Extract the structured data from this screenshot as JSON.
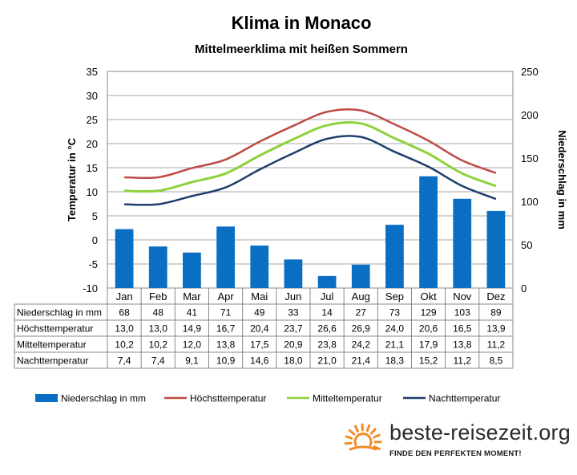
{
  "chart_data": {
    "type": "bar+line",
    "title": "Klima in Monaco",
    "subtitle": "Mittelmeerklima mit heißen Sommern",
    "categories": [
      "Jan",
      "Feb",
      "Mar",
      "Apr",
      "Mai",
      "Jun",
      "Jul",
      "Aug",
      "Sep",
      "Okt",
      "Nov",
      "Dez"
    ],
    "y_left": {
      "label": "Temperatur in °C",
      "min": -10,
      "max": 35,
      "step": 5,
      "ticks": [
        "35",
        "30",
        "25",
        "20",
        "15",
        "10",
        "5",
        "0",
        "-5",
        "-10"
      ]
    },
    "y_right": {
      "label": "Niederschlag in mm",
      "min": 0,
      "max": 250,
      "step": 50,
      "ticks": [
        "250",
        "200",
        "150",
        "100",
        "50",
        "0"
      ]
    },
    "grid": true,
    "series": [
      {
        "name": "Niederschlag in mm",
        "kind": "bar",
        "axis": "right",
        "color": "#0a6fc2",
        "values": [
          68,
          48,
          41,
          71,
          49,
          33,
          14,
          27,
          73,
          129,
          103,
          89
        ],
        "labels": [
          "68",
          "48",
          "41",
          "71",
          "49",
          "33",
          "14",
          "27",
          "73",
          "129",
          "103",
          "89"
        ]
      },
      {
        "name": "Höchsttemperatur",
        "kind": "line",
        "axis": "left",
        "color": "#bf4b45",
        "values": [
          13.0,
          13.0,
          14.9,
          16.7,
          20.4,
          23.7,
          26.6,
          26.9,
          24.0,
          20.6,
          16.5,
          13.9
        ],
        "labels": [
          "13,0",
          "13,0",
          "14,9",
          "16,7",
          "20,4",
          "23,7",
          "26,6",
          "26,9",
          "24,0",
          "20,6",
          "16,5",
          "13,9"
        ]
      },
      {
        "name": "Mitteltemperatur",
        "kind": "line",
        "axis": "left",
        "color": "#8dd13c",
        "values": [
          10.2,
          10.2,
          12.0,
          13.8,
          17.5,
          20.9,
          23.8,
          24.2,
          21.1,
          17.9,
          13.8,
          11.2
        ],
        "labels": [
          "10,2",
          "10,2",
          "12,0",
          "13,8",
          "17,5",
          "20,9",
          "23,8",
          "24,2",
          "21,1",
          "17,9",
          "13,8",
          "11,2"
        ]
      },
      {
        "name": "Nachttemperatur",
        "kind": "line",
        "axis": "left",
        "color": "#1f3d6e",
        "values": [
          7.4,
          7.4,
          9.1,
          10.9,
          14.6,
          18.0,
          21.0,
          21.4,
          18.3,
          15.2,
          11.2,
          8.5
        ],
        "labels": [
          "7,4",
          "7,4",
          "9,1",
          "10,9",
          "14,6",
          "18,0",
          "21,0",
          "21,4",
          "18,3",
          "15,2",
          "11,2",
          "8,5"
        ]
      }
    ],
    "table_row_headers": [
      "Niederschlag in mm",
      "Höchsttemperatur",
      "Mitteltemperatur",
      "Nachttemperatur"
    ],
    "legend": [
      "Niederschlag in mm",
      "Höchsttemperatur",
      "Mitteltemperatur",
      "Nachttemperatur"
    ],
    "legend_position": "bottom"
  },
  "branding": {
    "site": "beste-reisezeit.org",
    "tagline": "FINDE DEN PERFEKTEN MOMENT!",
    "sun_color": "#f28c28"
  }
}
